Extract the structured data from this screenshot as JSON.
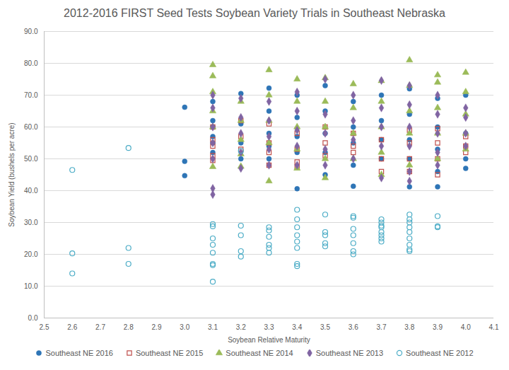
{
  "chart_data": {
    "type": "scatter",
    "title": "2012-2016 FIRST Seed Tests Soybean Variety Trials in Southeast Nebraska",
    "x_label": "Soybean Relative Maturity",
    "y_label": "Soybean Yield (bushels per acre)",
    "xlim": [
      2.5,
      4.1
    ],
    "xticks": [
      2.5,
      2.6,
      2.7,
      2.8,
      2.9,
      {
        "value": 3,
        "label": "3.0"
      },
      3.1,
      3.2,
      3.3,
      3.4,
      3.5,
      3.6,
      3.7,
      3.8,
      3.9,
      {
        "value": 4,
        "label": "4.0"
      },
      4.1
    ],
    "ylim": [
      0,
      90
    ],
    "yticks": [
      {
        "value": 0,
        "label": "0.0"
      },
      {
        "value": 10,
        "label": "10.0"
      },
      {
        "value": 20,
        "label": "20.0"
      },
      {
        "value": 30,
        "label": "30.0"
      },
      {
        "value": 40,
        "label": "40.0"
      },
      {
        "value": 50,
        "label": "50.0"
      },
      {
        "value": 60,
        "label": "60.0"
      },
      {
        "value": 70,
        "label": "70.0"
      },
      {
        "value": 80,
        "label": "80.0"
      },
      {
        "value": 90,
        "label": "90.0"
      }
    ],
    "grid": true,
    "legend": "bottom",
    "series": [
      {
        "name": "Southeast NE 2016",
        "color": "#2e75b6",
        "marker": "circle",
        "x": [
          3,
          3,
          3,
          3.1,
          3.1,
          3.1,
          3.1,
          3.1,
          3.1,
          3.2,
          3.2,
          3.2,
          3.2,
          3.3,
          3.3,
          3.3,
          3.3,
          3.3,
          3.4,
          3.4,
          3.4,
          3.4,
          3.4,
          3.5,
          3.5,
          3.5,
          3.5,
          3.5,
          3.6,
          3.6,
          3.6,
          3.6,
          3.6,
          3.7,
          3.7,
          3.7,
          3.7,
          3.8,
          3.8,
          3.8,
          3.8,
          3.8,
          3.9,
          3.9,
          3.9,
          3.9,
          3.9,
          4,
          4,
          4,
          4
        ],
        "values": [
          66.2,
          49.2,
          44.7,
          68,
          62,
          57,
          55,
          52,
          60,
          70.5,
          61,
          55,
          50,
          72.2,
          65,
          58,
          54,
          50,
          70,
          63,
          57,
          52,
          40.6,
          73,
          65,
          58,
          52,
          45,
          68,
          60,
          55,
          48,
          41.4,
          70,
          62,
          56,
          50,
          72,
          64,
          56,
          50,
          41.2,
          69,
          60,
          53,
          46,
          41.2,
          70,
          58,
          50,
          47
        ]
      },
      {
        "name": "Southeast NE 2015",
        "color": "#c0504d",
        "marker": "open_square",
        "x": [
          3.1,
          3.1,
          3.1,
          3.1,
          3.1,
          3.2,
          3.2,
          3.2,
          3.3,
          3.3,
          3.3,
          3.3,
          3.4,
          3.4,
          3.4,
          3.4,
          3.5,
          3.5,
          3.5,
          3.6,
          3.6,
          3.6,
          3.7,
          3.7,
          3.7,
          3.8,
          3.8,
          3.8,
          3.8,
          3.9,
          3.9,
          3.9,
          3.9,
          4,
          4,
          4
        ],
        "values": [
          60,
          56,
          51,
          49.5,
          54,
          62,
          57,
          53,
          61,
          55,
          48,
          52,
          58,
          53,
          49,
          47.5,
          60,
          55,
          51,
          58,
          54,
          52,
          56,
          50,
          46,
          59,
          55,
          50,
          46,
          59.5,
          55,
          50,
          45,
          57,
          54,
          52
        ]
      },
      {
        "name": "Southeast NE 2014",
        "color": "#9bbb59",
        "marker": "triangle",
        "x": [
          3.1,
          3.1,
          3.1,
          3.1,
          3.1,
          3.1,
          3.2,
          3.2,
          3.2,
          3.2,
          3.2,
          3.3,
          3.3,
          3.3,
          3.3,
          3.3,
          3.4,
          3.4,
          3.4,
          3.4,
          3.4,
          3.5,
          3.5,
          3.5,
          3.5,
          3.5,
          3.6,
          3.6,
          3.6,
          3.6,
          3.7,
          3.7,
          3.7,
          3.7,
          3.7,
          3.8,
          3.8,
          3.8,
          3.8,
          3.8,
          3.9,
          3.9,
          3.9,
          3.9,
          3.9,
          4,
          4,
          4,
          4,
          4
        ],
        "values": [
          79.5,
          76,
          71,
          65,
          60,
          47.5,
          68,
          62,
          56,
          51.5,
          47.6,
          77.9,
          70,
          62,
          55,
          43,
          75,
          68,
          60,
          53,
          47,
          75.4,
          68,
          60,
          50,
          44,
          73.5,
          66,
          58,
          50,
          74.5,
          68,
          60,
          52,
          45,
          81,
          73,
          65,
          58,
          48,
          76.3,
          74,
          66,
          58,
          50,
          77.1,
          71,
          64,
          58,
          53
        ]
      },
      {
        "name": "Southeast NE 2013",
        "color": "#8064a2",
        "marker": "diamond",
        "x": [
          3.1,
          3.1,
          3.1,
          3.1,
          3.1,
          3.1,
          3.1,
          3.2,
          3.2,
          3.2,
          3.2,
          3.2,
          3.3,
          3.3,
          3.3,
          3.3,
          3.3,
          3.4,
          3.4,
          3.4,
          3.4,
          3.4,
          3.5,
          3.5,
          3.5,
          3.5,
          3.5,
          3.6,
          3.6,
          3.6,
          3.6,
          3.7,
          3.7,
          3.7,
          3.7,
          3.7,
          3.8,
          3.8,
          3.8,
          3.8,
          3.8,
          3.8,
          3.9,
          3.9,
          3.9,
          3.9,
          3.9,
          4,
          4,
          4,
          4
        ],
        "values": [
          70,
          66,
          60,
          55,
          50,
          40.7,
          38.8,
          69,
          63,
          58,
          52,
          47,
          68,
          62,
          57,
          53,
          48,
          71,
          65,
          59,
          54,
          48,
          75,
          64,
          58,
          53,
          48,
          70,
          62,
          56,
          50,
          74.6,
          66,
          60,
          54,
          44,
          73,
          67,
          60,
          54,
          46,
          43,
          70,
          64,
          58,
          52,
          48,
          66,
          63,
          58,
          54
        ]
      },
      {
        "name": "Southeast NE 2012",
        "color": "#4bacc6",
        "marker": "open_circle",
        "x": [
          2.6,
          2.6,
          2.6,
          2.8,
          2.8,
          2.8,
          3.1,
          3.1,
          3.1,
          3.1,
          3.1,
          3.1,
          3.1,
          3.1,
          3.2,
          3.2,
          3.2,
          3.2,
          3.2,
          3.3,
          3.3,
          3.3,
          3.3,
          3.3,
          3.3,
          3.4,
          3.4,
          3.4,
          3.4,
          3.4,
          3.4,
          3.4,
          3.4,
          3.5,
          3.5,
          3.5,
          3.5,
          3.5,
          3.6,
          3.6,
          3.6,
          3.6,
          3.6,
          3.6,
          3.6,
          3.7,
          3.7,
          3.7,
          3.7,
          3.7,
          3.7,
          3.7,
          3.7,
          3.8,
          3.8,
          3.8,
          3.8,
          3.8,
          3.8,
          3.8,
          3.8,
          3.8,
          3.9,
          3.9,
          3.9
        ],
        "values": [
          46.5,
          20.3,
          14,
          53.4,
          22,
          17,
          29.5,
          28.8,
          25,
          23,
          20.5,
          17,
          16.6,
          11.4,
          52.5,
          29,
          26,
          21,
          19.3,
          28.5,
          27.5,
          25.5,
          23,
          22,
          20.5,
          34,
          31,
          28.5,
          26,
          24,
          22,
          17,
          16.3,
          32.5,
          27,
          26,
          23.5,
          22.5,
          32,
          31.5,
          28,
          26,
          23.5,
          21,
          20,
          31,
          30,
          29,
          28.5,
          27,
          26,
          25,
          24,
          32.5,
          31,
          30,
          28.5,
          27,
          25,
          23,
          21.5,
          21,
          32,
          28.8,
          28.5
        ]
      }
    ]
  }
}
